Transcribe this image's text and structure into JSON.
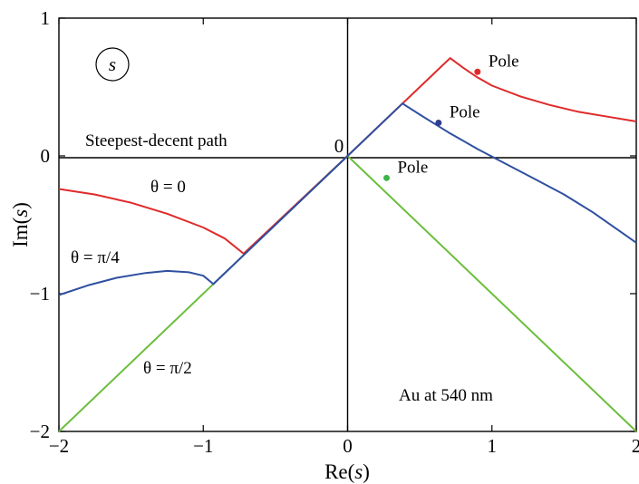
{
  "chart_data": {
    "type": "line",
    "title": "",
    "xlabel_prefix": "Re(",
    "xlabel_var": "s",
    "xlabel_suffix": ")",
    "ylabel_prefix": "Im(",
    "ylabel_var": "s",
    "ylabel_suffix": ")",
    "xlim": [
      -2,
      2
    ],
    "ylim": [
      -2,
      1
    ],
    "x_ticks": [
      -2,
      -1,
      0,
      1,
      2
    ],
    "x_tick_labels": [
      "−2",
      "−1",
      "0",
      "1",
      "2"
    ],
    "y_ticks": [
      -2,
      -1,
      0,
      1
    ],
    "y_tick_labels": [
      "−2",
      "−1",
      "0",
      "1"
    ],
    "grid": false,
    "panel_label": "s",
    "axis_cross_label": "0",
    "annotations": {
      "path_label": "Steepest-decent path",
      "material_label": "Au at 540 nm",
      "theta0_label": "θ = 0",
      "theta_pi4_label": "θ = π/4",
      "theta_pi2_label": "θ = π/2"
    },
    "colors": {
      "theta_0": "#e02a2a",
      "theta_pi4": "#2f4fa0",
      "theta_pi2": "#6cbe3c",
      "axes": "#000000"
    },
    "series": [
      {
        "key": "theta_0",
        "points": [
          [
            -2,
            -0.24
          ],
          [
            -1.75,
            -0.28
          ],
          [
            -1.5,
            -0.34
          ],
          [
            -1.25,
            -0.42
          ],
          [
            -1.0,
            -0.52
          ],
          [
            -0.85,
            -0.6
          ],
          [
            -0.72,
            -0.71
          ],
          [
            0,
            0
          ],
          [
            0.71,
            0.71
          ],
          [
            0.8,
            0.64
          ],
          [
            0.9,
            0.57
          ],
          [
            1.0,
            0.51
          ],
          [
            1.2,
            0.43
          ],
          [
            1.4,
            0.37
          ],
          [
            1.6,
            0.32
          ],
          [
            1.8,
            0.285
          ],
          [
            2.0,
            0.25
          ]
        ]
      },
      {
        "key": "theta_pi4",
        "points": [
          [
            -2,
            -1.01
          ],
          [
            -1.8,
            -0.94
          ],
          [
            -1.6,
            -0.885
          ],
          [
            -1.4,
            -0.85
          ],
          [
            -1.25,
            -0.835
          ],
          [
            -1.1,
            -0.845
          ],
          [
            -1.0,
            -0.87
          ],
          [
            -0.93,
            -0.93
          ],
          [
            0,
            0
          ],
          [
            0.38,
            0.38
          ],
          [
            0.5,
            0.3
          ],
          [
            0.7,
            0.17
          ],
          [
            0.9,
            0.05
          ],
          [
            1.1,
            -0.06
          ],
          [
            1.3,
            -0.17
          ],
          [
            1.5,
            -0.28
          ],
          [
            1.7,
            -0.41
          ],
          [
            2.0,
            -0.63
          ]
        ]
      },
      {
        "key": "theta_pi2",
        "points": [
          [
            -2,
            -2
          ],
          [
            0,
            0
          ],
          [
            2,
            -2
          ]
        ]
      }
    ],
    "poles": [
      {
        "x": 0.9,
        "y": 0.61,
        "label": "Pole",
        "color": "#e02a2a"
      },
      {
        "x": 0.63,
        "y": 0.24,
        "label": "Pole",
        "color": "#2f3f8f"
      },
      {
        "x": 0.27,
        "y": -0.16,
        "label": "Pole",
        "color": "#3cb44b"
      }
    ]
  }
}
